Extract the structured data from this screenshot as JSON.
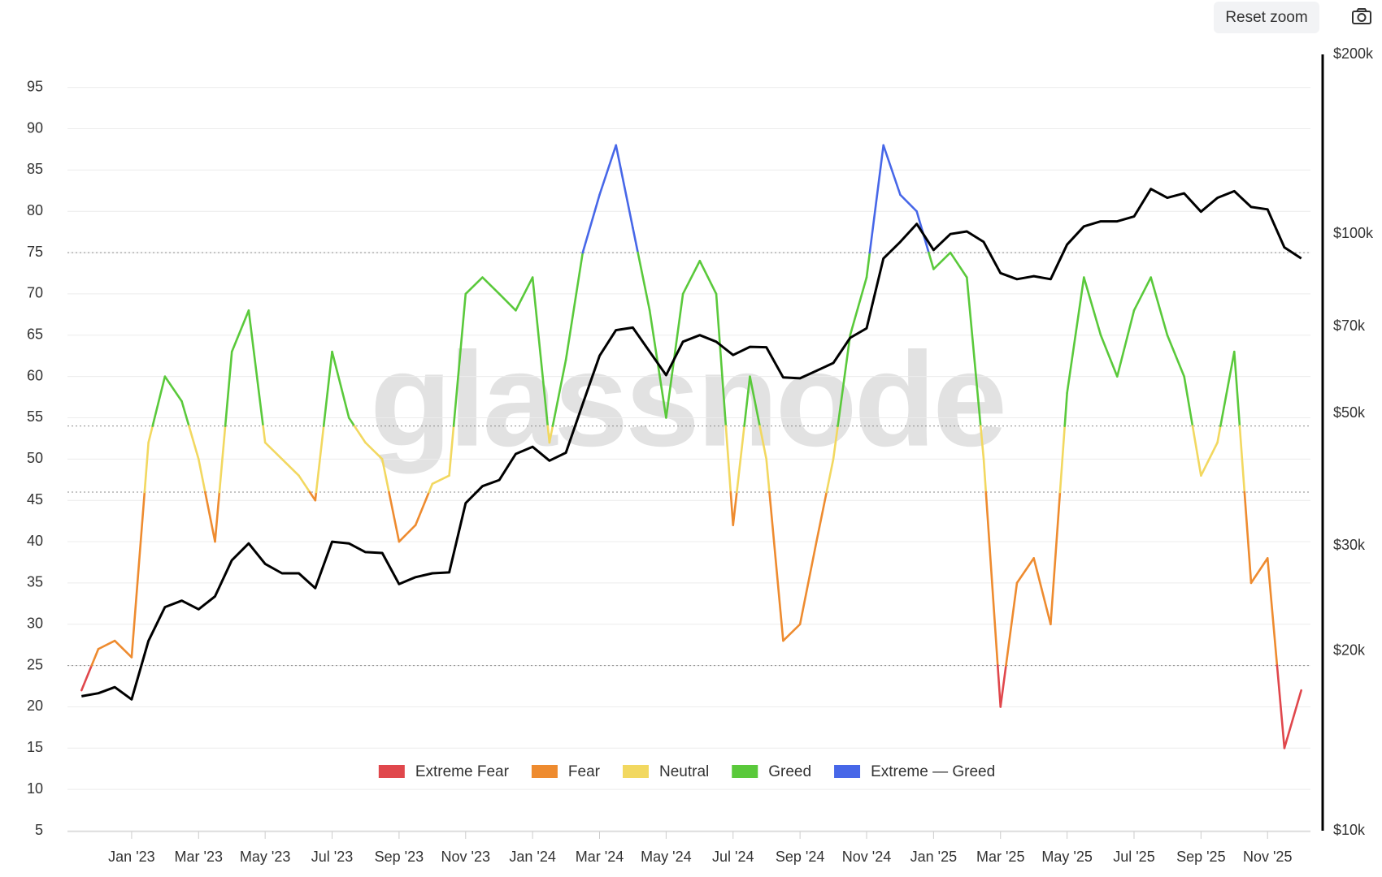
{
  "toolbar": {
    "reset_zoom": "Reset zoom"
  },
  "chart_data": {
    "type": "line",
    "watermark": "glassnode",
    "x": [
      2022.875,
      2022.917,
      2022.958,
      2023,
      2023.042,
      2023.083,
      2023.125,
      2023.167,
      2023.208,
      2023.25,
      2023.292,
      2023.333,
      2023.375,
      2023.417,
      2023.458,
      2023.5,
      2023.542,
      2023.583,
      2023.625,
      2023.667,
      2023.708,
      2023.75,
      2023.792,
      2023.833,
      2023.875,
      2023.917,
      2023.958,
      2024,
      2024.042,
      2024.083,
      2024.125,
      2024.167,
      2024.208,
      2024.25,
      2024.292,
      2024.333,
      2024.375,
      2024.417,
      2024.458,
      2024.5,
      2024.542,
      2024.583,
      2024.625,
      2024.667,
      2024.708,
      2024.75,
      2024.792,
      2024.833,
      2024.875,
      2024.917,
      2024.958,
      2025,
      2025.042,
      2025.083,
      2025.125,
      2025.167,
      2025.208,
      2025.25,
      2025.292,
      2025.333,
      2025.375,
      2025.417,
      2025.458,
      2025.5,
      2025.542,
      2025.583,
      2025.625,
      2025.667,
      2025.708,
      2025.75,
      2025.792,
      2025.833,
      2025.875,
      2025.917
    ],
    "series": [
      {
        "zoned": true,
        "values": [
          22,
          27,
          28,
          26,
          52,
          60,
          57,
          50,
          40,
          63,
          68,
          52,
          50,
          48,
          45,
          63,
          55,
          52,
          50,
          40,
          42,
          47,
          48,
          70,
          72,
          70,
          68,
          72,
          52,
          62,
          75,
          82,
          88,
          78,
          68,
          55,
          70,
          74,
          70,
          42,
          60,
          50,
          28,
          30,
          40,
          50,
          65,
          72,
          88,
          82,
          80,
          73,
          75,
          72,
          50,
          20,
          35,
          38,
          30,
          58,
          72,
          65,
          60,
          68,
          72,
          65,
          60,
          48,
          52,
          63,
          35,
          38,
          15,
          22
        ]
      },
      {
        "color": "#000000",
        "axis": "y2",
        "values": [
          16800,
          17000,
          17400,
          16600,
          20800,
          23700,
          24300,
          23500,
          24700,
          28400,
          30300,
          28000,
          27000,
          27000,
          25500,
          30500,
          30300,
          29300,
          29200,
          25900,
          26600,
          27000,
          27100,
          35400,
          37800,
          38700,
          42800,
          44000,
          41700,
          43000,
          51900,
          62500,
          69000,
          69700,
          63500,
          58000,
          66000,
          67700,
          66000,
          62700,
          64700,
          64600,
          57500,
          57300,
          59000,
          60800,
          67000,
          69500,
          91000,
          97000,
          104000,
          94000,
          100000,
          101000,
          97000,
          86000,
          84000,
          85000,
          84000,
          96000,
          103000,
          105000,
          105000,
          107000,
          119000,
          115000,
          117000,
          109000,
          115000,
          118000,
          111000,
          110000,
          95000,
          91000
        ]
      }
    ],
    "thresholds": [
      25,
      46,
      54,
      75
    ],
    "zones": [
      {
        "name": "Extreme Fear",
        "color": "#e0474c"
      },
      {
        "name": "Fear",
        "color": "#ee8b2f"
      },
      {
        "name": "Neutral",
        "color": "#f2d860"
      },
      {
        "name": "Greed",
        "color": "#5ac93b"
      },
      {
        "name": "Extreme — Greed",
        "color": "#4767e8"
      }
    ],
    "xlim": [
      2022.84,
      2025.94
    ],
    "xticks": [
      {
        "value": 2023,
        "label": "Jan '23"
      },
      {
        "value": 2023.167,
        "label": "Mar '23"
      },
      {
        "value": 2023.333,
        "label": "May '23"
      },
      {
        "value": 2023.5,
        "label": "Jul '23"
      },
      {
        "value": 2023.667,
        "label": "Sep '23"
      },
      {
        "value": 2023.833,
        "label": "Nov '23"
      },
      {
        "value": 2024,
        "label": "Jan '24"
      },
      {
        "value": 2024.167,
        "label": "Mar '24"
      },
      {
        "value": 2024.333,
        "label": "May '24"
      },
      {
        "value": 2024.5,
        "label": "Jul '24"
      },
      {
        "value": 2024.667,
        "label": "Sep '24"
      },
      {
        "value": 2024.833,
        "label": "Nov '24"
      },
      {
        "value": 2025,
        "label": "Jan '25"
      },
      {
        "value": 2025.167,
        "label": "Mar '25"
      },
      {
        "value": 2025.333,
        "label": "May '25"
      },
      {
        "value": 2025.5,
        "label": "Jul '25"
      },
      {
        "value": 2025.667,
        "label": "Sep '25"
      },
      {
        "value": 2025.833,
        "label": "Nov '25"
      }
    ],
    "ylim": [
      5,
      99
    ],
    "yticks": [
      5,
      10,
      15,
      20,
      25,
      30,
      35,
      40,
      45,
      50,
      55,
      60,
      65,
      70,
      75,
      80,
      85,
      90,
      95
    ],
    "y2lim": [
      10000,
      200000
    ],
    "y2scale": "log",
    "y2ticks": [
      {
        "value": 10000,
        "label": "$10k"
      },
      {
        "value": 20000,
        "label": "$20k"
      },
      {
        "value": 30000,
        "label": "$30k"
      },
      {
        "value": 50000,
        "label": "$50k"
      },
      {
        "value": 70000,
        "label": "$70k"
      },
      {
        "value": 100000,
        "label": "$100k"
      },
      {
        "value": 200000,
        "label": "$200k"
      }
    ],
    "grid": true
  }
}
